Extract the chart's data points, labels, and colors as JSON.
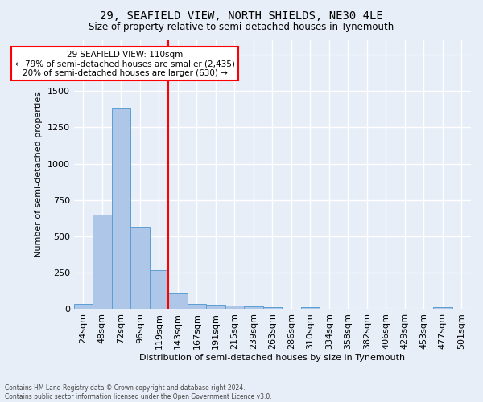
{
  "title1": "29, SEAFIELD VIEW, NORTH SHIELDS, NE30 4LE",
  "title2": "Size of property relative to semi-detached houses in Tynemouth",
  "xlabel": "Distribution of semi-detached houses by size in Tynemouth",
  "ylabel": "Number of semi-detached properties",
  "footnote": "Contains HM Land Registry data © Crown copyright and database right 2024.\nContains public sector information licensed under the Open Government Licence v3.0.",
  "bin_labels": [
    "24sqm",
    "48sqm",
    "72sqm",
    "96sqm",
    "119sqm",
    "143sqm",
    "167sqm",
    "191sqm",
    "215sqm",
    "239sqm",
    "263sqm",
    "286sqm",
    "310sqm",
    "334sqm",
    "358sqm",
    "382sqm",
    "406sqm",
    "429sqm",
    "453sqm",
    "477sqm",
    "501sqm"
  ],
  "bar_values": [
    35,
    648,
    1383,
    565,
    270,
    107,
    38,
    28,
    22,
    18,
    15,
    0,
    14,
    0,
    0,
    0,
    0,
    0,
    0,
    16,
    0
  ],
  "bar_color": "#aec6e8",
  "bar_edgecolor": "#5a9fd4",
  "vline_x": 4,
  "vline_color": "red",
  "annotation_text": "29 SEAFIELD VIEW: 110sqm\n← 79% of semi-detached houses are smaller (2,435)\n20% of semi-detached houses are larger (630) →",
  "annotation_box_color": "white",
  "annotation_box_edgecolor": "red",
  "ylim": [
    0,
    1850
  ],
  "background_color": "#e8eef8",
  "grid_color": "white",
  "property_size_sqm": 110,
  "n_bins": 21
}
